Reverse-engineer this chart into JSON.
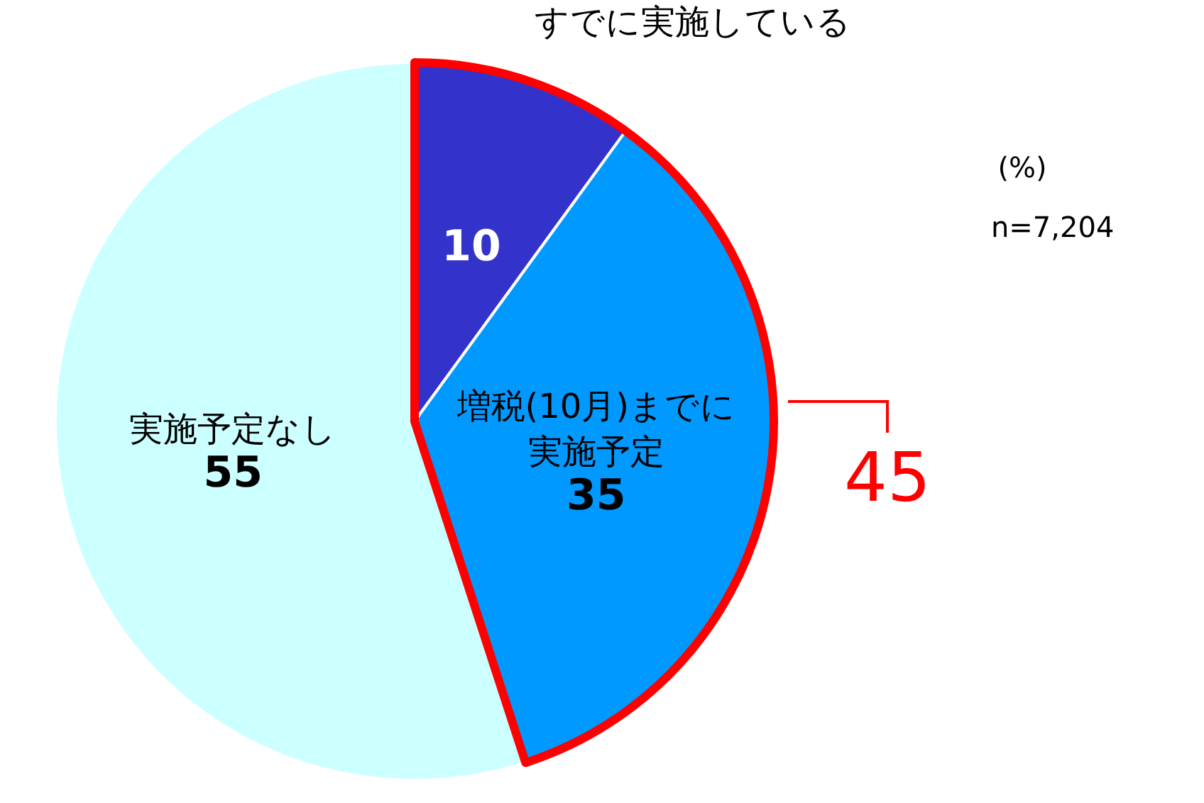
{
  "chart_data": {
    "type": "pie",
    "categories": [
      "すでに実施している",
      "増税(10月)までに実施予定",
      "実施予定なし"
    ],
    "values": [
      10,
      35,
      55
    ],
    "colors": [
      "#3333cc",
      "#0099ff",
      "#ccffff"
    ],
    "data_labels": true,
    "legend": false,
    "annotations": [
      "(%)",
      "n=7,204",
      "45"
    ]
  }
}
